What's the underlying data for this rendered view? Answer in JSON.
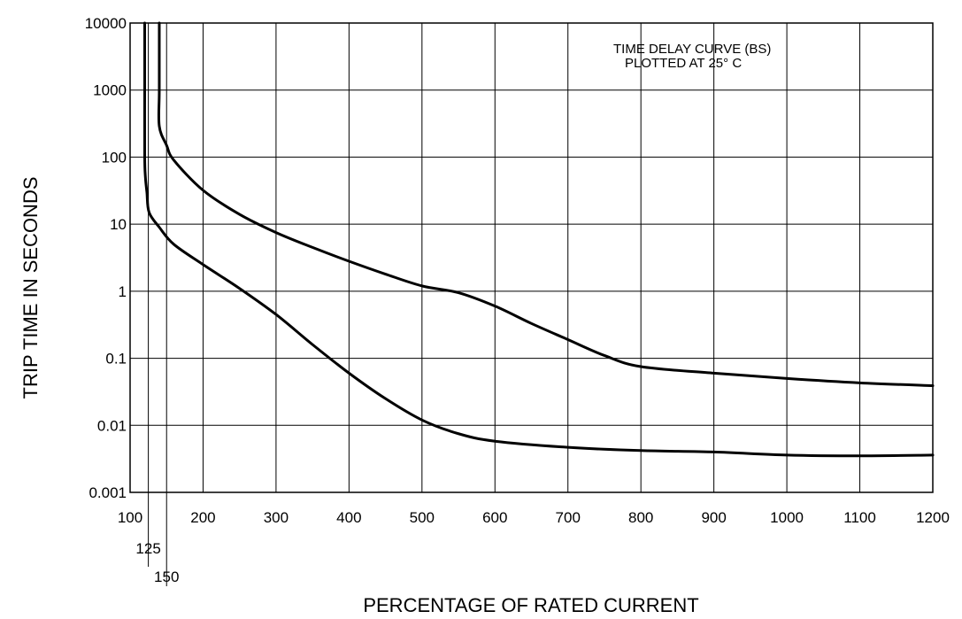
{
  "chart_data": {
    "type": "line",
    "xlabel": "PERCENTAGE OF RATED CURRENT",
    "ylabel": "TRIP TIME IN SECONDS",
    "annotation": [
      "TIME DELAY CURVE (BS)",
      "PLOTTED AT 25° C"
    ],
    "xlim": [
      100,
      1200
    ],
    "ylim": [
      0.001,
      10000
    ],
    "y_scale": "log",
    "grid": true,
    "x_ticks": [
      {
        "value": 100,
        "label": "100"
      },
      {
        "value": 200,
        "label": "200"
      },
      {
        "value": 300,
        "label": "300"
      },
      {
        "value": 400,
        "label": "400"
      },
      {
        "value": 500,
        "label": "500"
      },
      {
        "value": 600,
        "label": "600"
      },
      {
        "value": 700,
        "label": "700"
      },
      {
        "value": 800,
        "label": "800"
      },
      {
        "value": 900,
        "label": "900"
      },
      {
        "value": 1000,
        "label": "1000"
      },
      {
        "value": 1100,
        "label": "1100"
      },
      {
        "value": 1200,
        "label": "1200"
      }
    ],
    "x_ticks_extra": [
      {
        "value": 125,
        "label": "125"
      },
      {
        "value": 150,
        "label": "150"
      }
    ],
    "y_ticks": [
      {
        "value": 0.001,
        "label": "0.001"
      },
      {
        "value": 0.01,
        "label": "0.01"
      },
      {
        "value": 0.1,
        "label": "0.1"
      },
      {
        "value": 1,
        "label": "1"
      },
      {
        "value": 10,
        "label": "10"
      },
      {
        "value": 100,
        "label": "100"
      },
      {
        "value": 1000,
        "label": "1000"
      },
      {
        "value": 10000,
        "label": "10000"
      }
    ],
    "series": [
      {
        "points": [
          [
            120,
            10000
          ],
          [
            120,
            1000
          ],
          [
            120,
            100
          ],
          [
            121,
            50
          ],
          [
            123,
            30
          ],
          [
            126,
            15
          ],
          [
            140,
            9
          ],
          [
            160,
            5
          ],
          [
            200,
            2.5
          ],
          [
            250,
            1.1
          ],
          [
            300,
            0.45
          ],
          [
            350,
            0.16
          ],
          [
            400,
            0.06
          ],
          [
            450,
            0.025
          ],
          [
            500,
            0.012
          ],
          [
            550,
            0.0075
          ],
          [
            600,
            0.0058
          ],
          [
            700,
            0.0047
          ],
          [
            800,
            0.0042
          ],
          [
            900,
            0.004
          ],
          [
            1000,
            0.0036
          ],
          [
            1100,
            0.0035
          ],
          [
            1200,
            0.0036
          ]
        ]
      },
      {
        "points": [
          [
            140,
            10000
          ],
          [
            140,
            1000
          ],
          [
            140,
            290
          ],
          [
            150,
            150
          ],
          [
            160,
            90
          ],
          [
            200,
            32
          ],
          [
            250,
            14
          ],
          [
            300,
            7.5
          ],
          [
            350,
            4.5
          ],
          [
            400,
            2.8
          ],
          [
            450,
            1.8
          ],
          [
            500,
            1.2
          ],
          [
            550,
            0.95
          ],
          [
            600,
            0.6
          ],
          [
            650,
            0.33
          ],
          [
            700,
            0.19
          ],
          [
            750,
            0.11
          ],
          [
            800,
            0.075
          ],
          [
            900,
            0.06
          ],
          [
            1000,
            0.05
          ],
          [
            1100,
            0.043
          ],
          [
            1200,
            0.039
          ]
        ]
      }
    ]
  }
}
